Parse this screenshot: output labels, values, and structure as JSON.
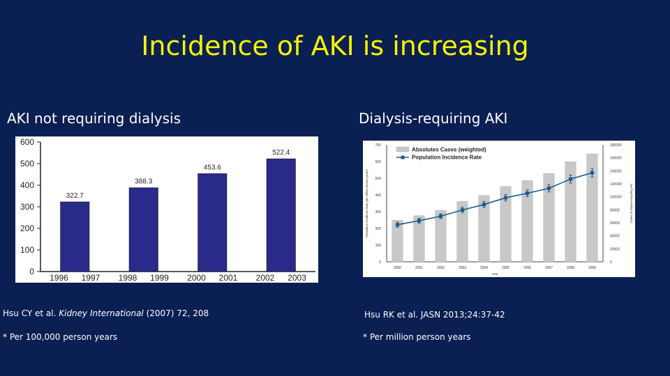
{
  "slide": {
    "title": "Incidence of AKI is increasing",
    "left_heading": "AKI not requiring dialysis",
    "right_heading": "Dialysis-requiring AKI",
    "left_citation": {
      "authors": "Hsu CY et al. ",
      "journal": "Kidney International",
      "details": " (2007) 72, 208"
    },
    "right_citation": "Hsu RK et al. JASN 2013;24:37-42",
    "left_note": "* Per 100,000 person years",
    "right_note": "* Per million person years"
  },
  "colors": {
    "background": "#0a1f52",
    "title": "#f5f500",
    "bar_left": "#2a2a8a",
    "bar_right": "#c8c8c8",
    "line_right": "#1e5b8a"
  },
  "chart_data": [
    {
      "type": "bar",
      "categories": [
        "1996 1997",
        "1998 1999",
        "2000 2001",
        "2002 2003"
      ],
      "x_tick_labels": [
        "1996",
        "1997",
        "1998",
        "1999",
        "2000",
        "2001",
        "2002",
        "2003"
      ],
      "values": [
        322.7,
        388.3,
        453.6,
        522.4
      ],
      "data_labels": [
        "322.7",
        "388.3",
        "453.6",
        "522.4"
      ],
      "ylim": [
        0,
        600
      ],
      "yticks": [
        0,
        100,
        200,
        300,
        400,
        500,
        600
      ],
      "grid": false
    },
    {
      "type": "bar+line",
      "categories": [
        "2000",
        "2001",
        "2002",
        "2003",
        "2004",
        "2005",
        "2006",
        "2007",
        "2008",
        "2009"
      ],
      "series": [
        {
          "name": "Absolutes Cases (weighted)",
          "kind": "bar",
          "axis": "right",
          "values": [
            64000,
            71000,
            79000,
            93000,
            102000,
            116000,
            125000,
            136000,
            154000,
            166000
          ]
        },
        {
          "name": "Population Incidence Rate",
          "kind": "line",
          "axis": "left",
          "values": [
            222,
            246,
            273,
            310,
            343,
            383,
            410,
            440,
            495,
            533
          ],
          "error": [
            15,
            14,
            15,
            17,
            18,
            19,
            20,
            22,
            24,
            25
          ]
        }
      ],
      "ylim_left": [
        0,
        700
      ],
      "yticks_left": [
        0,
        100,
        200,
        300,
        400,
        500,
        600,
        700
      ],
      "ylim_right": [
        0,
        180000
      ],
      "yticks_right": [
        0,
        20000,
        40000,
        60000,
        80000,
        100000,
        120000,
        140000,
        160000,
        180000
      ],
      "xlabel": "Year",
      "ylabel_left": "Population Incidence Rate (per million person-years)",
      "ylabel_right": "Cases of dialysis-requiring AKI",
      "legend_position": "top-left"
    }
  ]
}
